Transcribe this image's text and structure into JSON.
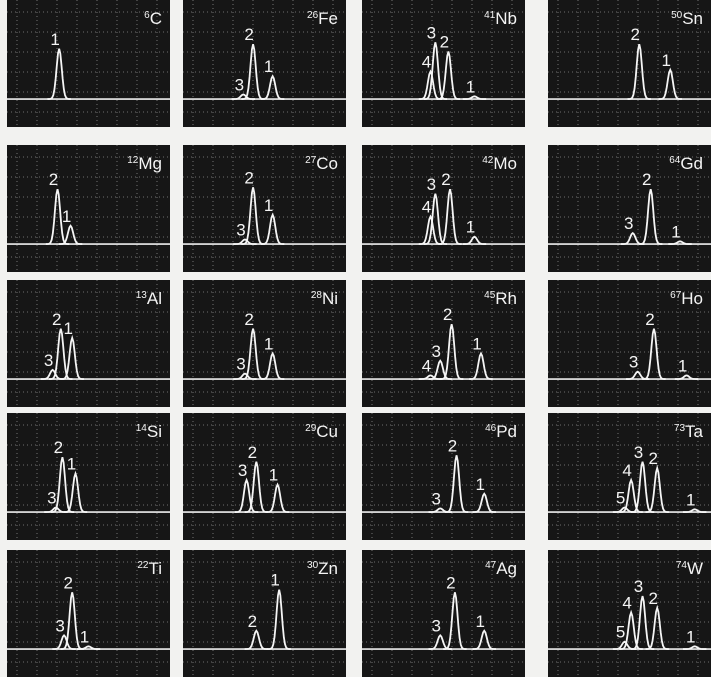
{
  "panels": [
    {
      "mass": 6,
      "symbol": "C",
      "peaks": [
        {
          "label": 1,
          "position": 32,
          "intensity": 55
        }
      ]
    },
    {
      "mass": 26,
      "symbol": "Fe",
      "peaks": [
        {
          "label": 3,
          "position": 37,
          "intensity": 5
        },
        {
          "label": 2,
          "position": 43,
          "intensity": 60
        },
        {
          "label": 1,
          "position": 55,
          "intensity": 25
        }
      ]
    },
    {
      "mass": 41,
      "symbol": "Nb",
      "peaks": [
        {
          "label": 4,
          "position": 42,
          "intensity": 30
        },
        {
          "label": 3,
          "position": 45,
          "intensity": 62
        },
        {
          "label": 2,
          "position": 53,
          "intensity": 52
        },
        {
          "label": 1,
          "position": 69,
          "intensity": 3
        }
      ]
    },
    {
      "mass": 50,
      "symbol": "Sn",
      "peaks": [
        {
          "label": 2,
          "position": 56,
          "intensity": 60
        },
        {
          "label": 1,
          "position": 75,
          "intensity": 32
        }
      ]
    },
    {
      "mass": 12,
      "symbol": "Mg",
      "peaks": [
        {
          "label": 2,
          "position": 31,
          "intensity": 60
        },
        {
          "label": 1,
          "position": 39,
          "intensity": 20
        }
      ]
    },
    {
      "mass": 27,
      "symbol": "Co",
      "peaks": [
        {
          "label": 3,
          "position": 38,
          "intensity": 5
        },
        {
          "label": 2,
          "position": 43,
          "intensity": 62
        },
        {
          "label": 1,
          "position": 55,
          "intensity": 32
        }
      ]
    },
    {
      "mass": 42,
      "symbol": "Mo",
      "peaks": [
        {
          "label": 4,
          "position": 42,
          "intensity": 30
        },
        {
          "label": 3,
          "position": 45,
          "intensity": 55
        },
        {
          "label": 2,
          "position": 54,
          "intensity": 60
        },
        {
          "label": 1,
          "position": 69,
          "intensity": 8
        }
      ]
    },
    {
      "mass": 64,
      "symbol": "Gd",
      "peaks": [
        {
          "label": 3,
          "position": 52,
          "intensity": 12
        },
        {
          "label": 2,
          "position": 63,
          "intensity": 60
        },
        {
          "label": 1,
          "position": 81,
          "intensity": 3
        }
      ]
    },
    {
      "mass": 13,
      "symbol": "Al",
      "peaks": [
        {
          "label": 3,
          "position": 28,
          "intensity": 10
        },
        {
          "label": 2,
          "position": 33,
          "intensity": 55
        },
        {
          "label": 1,
          "position": 40,
          "intensity": 45
        }
      ]
    },
    {
      "mass": 28,
      "symbol": "Ni",
      "peaks": [
        {
          "label": 3,
          "position": 38,
          "intensity": 6
        },
        {
          "label": 2,
          "position": 43,
          "intensity": 55
        },
        {
          "label": 1,
          "position": 55,
          "intensity": 28
        }
      ]
    },
    {
      "mass": 45,
      "symbol": "Rh",
      "peaks": [
        {
          "label": 4,
          "position": 42,
          "intensity": 4
        },
        {
          "label": 3,
          "position": 48,
          "intensity": 20
        },
        {
          "label": 2,
          "position": 55,
          "intensity": 60
        },
        {
          "label": 1,
          "position": 73,
          "intensity": 28
        }
      ]
    },
    {
      "mass": 67,
      "symbol": "Ho",
      "peaks": [
        {
          "label": 3,
          "position": 55,
          "intensity": 8
        },
        {
          "label": 2,
          "position": 65,
          "intensity": 55
        },
        {
          "label": 1,
          "position": 85,
          "intensity": 4
        }
      ]
    },
    {
      "mass": 14,
      "symbol": "Si",
      "peaks": [
        {
          "label": 3,
          "position": 30,
          "intensity": 5
        },
        {
          "label": 2,
          "position": 34,
          "intensity": 60
        },
        {
          "label": 1,
          "position": 42,
          "intensity": 42
        }
      ]
    },
    {
      "mass": 29,
      "symbol": "Cu",
      "peaks": [
        {
          "label": 3,
          "position": 39,
          "intensity": 35
        },
        {
          "label": 2,
          "position": 45,
          "intensity": 55
        },
        {
          "label": 1,
          "position": 58,
          "intensity": 30
        }
      ]
    },
    {
      "mass": 46,
      "symbol": "Pd",
      "peaks": [
        {
          "label": 3,
          "position": 48,
          "intensity": 4
        },
        {
          "label": 2,
          "position": 58,
          "intensity": 62
        },
        {
          "label": 1,
          "position": 75,
          "intensity": 20
        }
      ]
    },
    {
      "mass": 73,
      "symbol": "Ta",
      "peaks": [
        {
          "label": 5,
          "position": 47,
          "intensity": 5
        },
        {
          "label": 4,
          "position": 51,
          "intensity": 35
        },
        {
          "label": 3,
          "position": 58,
          "intensity": 55
        },
        {
          "label": 2,
          "position": 67,
          "intensity": 48
        },
        {
          "label": 1,
          "position": 90,
          "intensity": 3
        }
      ]
    },
    {
      "mass": 22,
      "symbol": "Ti",
      "peaks": [
        {
          "label": 3,
          "position": 35,
          "intensity": 15
        },
        {
          "label": 2,
          "position": 40,
          "intensity": 62
        },
        {
          "label": 1,
          "position": 50,
          "intensity": 3
        }
      ]
    },
    {
      "mass": 30,
      "symbol": "Zn",
      "peaks": [
        {
          "label": 2,
          "position": 45,
          "intensity": 20
        },
        {
          "label": 1,
          "position": 59,
          "intensity": 65
        }
      ]
    },
    {
      "mass": 47,
      "symbol": "Ag",
      "peaks": [
        {
          "label": 3,
          "position": 48,
          "intensity": 15
        },
        {
          "label": 2,
          "position": 57,
          "intensity": 62
        },
        {
          "label": 1,
          "position": 75,
          "intensity": 20
        }
      ]
    },
    {
      "mass": 74,
      "symbol": "W",
      "peaks": [
        {
          "label": 5,
          "position": 47,
          "intensity": 8
        },
        {
          "label": 4,
          "position": 51,
          "intensity": 40
        },
        {
          "label": 3,
          "position": 58,
          "intensity": 58
        },
        {
          "label": 2,
          "position": 67,
          "intensity": 45
        },
        {
          "label": 1,
          "position": 90,
          "intensity": 3
        }
      ]
    }
  ]
}
